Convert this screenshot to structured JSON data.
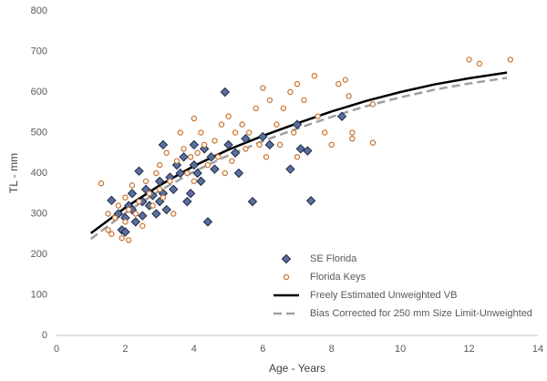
{
  "chart_data": {
    "type": "scatter",
    "x_label": "Age - Years",
    "y_label": "TL - mm",
    "xlim": [
      0,
      14
    ],
    "xticks": [
      0,
      2,
      4,
      6,
      8,
      10,
      12,
      14
    ],
    "ylim": [
      0,
      800
    ],
    "yticks": [
      0,
      100,
      200,
      300,
      400,
      500,
      600,
      700,
      800
    ],
    "grid": false,
    "legend": "lower right",
    "series": [
      {
        "name": "SE Florida",
        "color": "#5a6f9e",
        "marker": "diamond",
        "x": [
          1.6,
          1.8,
          1.9,
          2.0,
          2.0,
          2.1,
          2.2,
          2.2,
          2.3,
          2.4,
          2.5,
          2.5,
          2.6,
          2.7,
          2.8,
          2.9,
          3.0,
          3.0,
          3.1,
          3.1,
          3.2,
          3.3,
          3.4,
          3.5,
          3.6,
          3.7,
          3.8,
          3.9,
          4.0,
          4.0,
          4.1,
          4.2,
          4.3,
          4.4,
          4.5,
          4.6,
          4.9,
          5.0,
          5.2,
          5.3,
          5.5,
          5.7,
          6.0,
          6.2,
          6.8,
          7.0,
          7.1,
          7.3,
          7.4,
          8.3
        ],
        "values": [
          333,
          300,
          260,
          255,
          290,
          320,
          350,
          310,
          280,
          405,
          330,
          295,
          360,
          320,
          345,
          300,
          380,
          330,
          470,
          350,
          310,
          390,
          360,
          420,
          400,
          440,
          330,
          350,
          470,
          420,
          400,
          380,
          460,
          280,
          440,
          410,
          600,
          470,
          450,
          400,
          485,
          330,
          490,
          470,
          410,
          520,
          460,
          455,
          332,
          540
        ]
      },
      {
        "name": "Florida Keys",
        "color": "#c8732e",
        "marker": "circle",
        "x": [
          1.3,
          1.5,
          1.5,
          1.6,
          1.7,
          1.8,
          1.9,
          2.0,
          2.0,
          2.1,
          2.1,
          2.2,
          2.3,
          2.4,
          2.5,
          2.6,
          2.7,
          2.8,
          2.9,
          3.0,
          3.0,
          3.1,
          3.2,
          3.3,
          3.4,
          3.5,
          3.6,
          3.7,
          3.8,
          3.9,
          4.0,
          4.0,
          4.1,
          4.2,
          4.3,
          4.4,
          4.6,
          4.7,
          4.8,
          4.9,
          5.0,
          5.1,
          5.2,
          5.4,
          5.5,
          5.6,
          5.8,
          5.9,
          6.0,
          6.1,
          6.2,
          6.4,
          6.5,
          6.6,
          6.8,
          6.9,
          7.0,
          7.0,
          7.2,
          7.5,
          7.6,
          7.8,
          8.0,
          8.2,
          8.4,
          8.5,
          8.6,
          8.6,
          9.2,
          9.2,
          12.0,
          12.3,
          13.2
        ],
        "values": [
          375,
          300,
          260,
          250,
          290,
          320,
          240,
          340,
          280,
          310,
          235,
          370,
          300,
          330,
          270,
          380,
          350,
          320,
          400,
          360,
          420,
          340,
          450,
          380,
          300,
          430,
          500,
          460,
          400,
          440,
          535,
          380,
          450,
          500,
          470,
          420,
          480,
          440,
          520,
          400,
          540,
          430,
          500,
          520,
          460,
          500,
          560,
          470,
          610,
          440,
          580,
          520,
          470,
          560,
          600,
          500,
          620,
          440,
          580,
          640,
          540,
          500,
          470,
          620,
          630,
          590,
          500,
          485,
          570,
          475,
          680,
          670,
          680
        ]
      },
      {
        "name": "Freely Estimated Unweighted VB",
        "color": "#000000",
        "line": "solid",
        "x": [
          1,
          2,
          3,
          4,
          5,
          6,
          7,
          8,
          9,
          10,
          11,
          12,
          13.1
        ],
        "values": [
          252,
          315,
          370,
          418,
          458,
          492,
          523,
          552,
          578,
          600,
          619,
          634,
          648
        ]
      },
      {
        "name": "Bias Corrected for 250 mm Size Limit-Unweighted",
        "color": "#a0a0a0",
        "line": "dashed",
        "x": [
          1,
          2,
          3,
          4,
          5,
          6,
          7,
          8,
          9,
          10,
          11,
          12,
          13.1
        ],
        "values": [
          238,
          302,
          357,
          404,
          444,
          479,
          510,
          539,
          565,
          587,
          606,
          621,
          635
        ]
      }
    ]
  }
}
